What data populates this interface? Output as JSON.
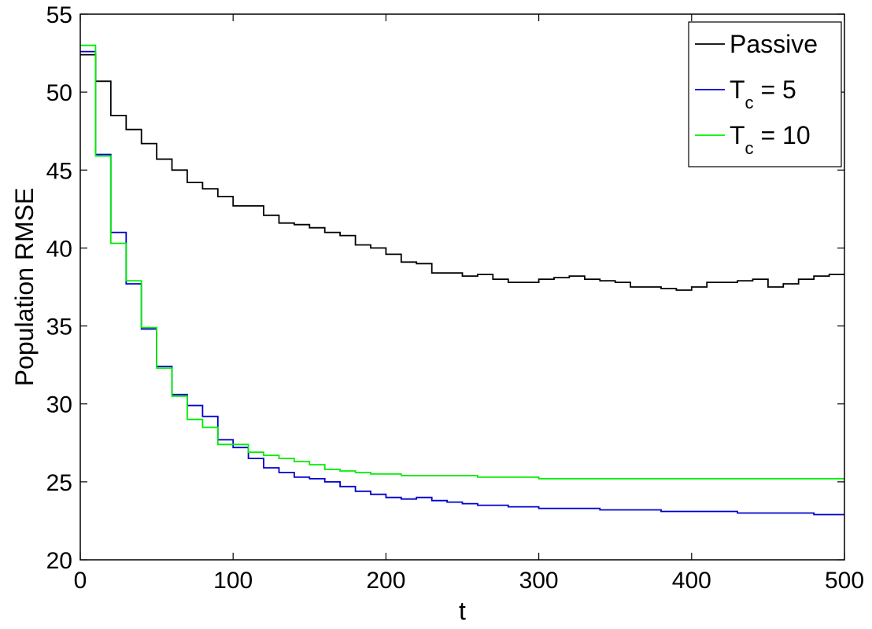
{
  "chart_data": {
    "type": "line",
    "xlabel": "t",
    "ylabel": "Population RMSE",
    "xlim": [
      0,
      500
    ],
    "ylim": [
      20,
      55
    ],
    "xticks": [
      "0",
      "100",
      "200",
      "300",
      "400",
      "500"
    ],
    "yticks": [
      "20",
      "25",
      "30",
      "35",
      "40",
      "45",
      "50",
      "55"
    ],
    "grid": false,
    "legend_position": "top-right",
    "step": "post",
    "series": [
      {
        "name": "Passive",
        "legend": {
          "main": "Passive",
          "sub": "",
          "rest": ""
        },
        "color": "#000000",
        "x": [
          0,
          10,
          20,
          30,
          40,
          50,
          60,
          70,
          80,
          90,
          100,
          110,
          120,
          130,
          140,
          150,
          160,
          170,
          180,
          190,
          200,
          210,
          220,
          230,
          240,
          250,
          260,
          270,
          280,
          290,
          300,
          310,
          320,
          330,
          340,
          350,
          360,
          370,
          380,
          390,
          400,
          410,
          420,
          430,
          440,
          450,
          460,
          470,
          480,
          490,
          500
        ],
        "y": [
          52.4,
          50.7,
          48.5,
          47.6,
          46.7,
          45.7,
          45.0,
          44.2,
          43.8,
          43.3,
          42.7,
          42.7,
          42.1,
          41.6,
          41.5,
          41.3,
          41.0,
          40.8,
          40.2,
          40.0,
          39.6,
          39.1,
          39.0,
          38.4,
          38.4,
          38.2,
          38.3,
          38.0,
          37.8,
          37.8,
          38.0,
          38.1,
          38.2,
          38.0,
          37.9,
          37.8,
          37.5,
          37.5,
          37.4,
          37.3,
          37.5,
          37.8,
          37.8,
          37.9,
          38.0,
          37.5,
          37.7,
          38.0,
          38.2,
          38.3,
          38.3
        ]
      },
      {
        "name": "T_c = 5",
        "legend": {
          "main": "T",
          "sub": "c",
          "rest": " = 5"
        },
        "color": "#0000cc",
        "x": [
          0,
          10,
          20,
          30,
          40,
          50,
          60,
          70,
          80,
          90,
          100,
          110,
          120,
          130,
          140,
          150,
          160,
          170,
          180,
          190,
          200,
          210,
          220,
          230,
          240,
          250,
          260,
          270,
          280,
          290,
          300,
          310,
          320,
          330,
          340,
          350,
          360,
          370,
          380,
          390,
          400,
          410,
          420,
          430,
          440,
          450,
          460,
          470,
          480,
          490,
          500
        ],
        "y": [
          52.6,
          46.0,
          41.0,
          37.7,
          34.8,
          32.4,
          30.6,
          29.9,
          29.2,
          27.7,
          27.2,
          26.5,
          25.9,
          25.6,
          25.3,
          25.2,
          25.0,
          24.7,
          24.4,
          24.2,
          24.0,
          23.9,
          24.0,
          23.8,
          23.7,
          23.6,
          23.5,
          23.5,
          23.4,
          23.4,
          23.3,
          23.3,
          23.3,
          23.3,
          23.2,
          23.2,
          23.2,
          23.2,
          23.1,
          23.1,
          23.1,
          23.1,
          23.1,
          23.0,
          23.0,
          23.0,
          23.0,
          23.0,
          22.9,
          22.9,
          22.9
        ]
      },
      {
        "name": "T_c = 10",
        "legend": {
          "main": "T",
          "sub": "c",
          "rest": " = 10"
        },
        "color": "#00ee00",
        "x": [
          0,
          10,
          20,
          30,
          40,
          50,
          60,
          70,
          80,
          90,
          100,
          110,
          120,
          130,
          140,
          150,
          160,
          170,
          180,
          190,
          200,
          210,
          220,
          230,
          240,
          250,
          260,
          270,
          280,
          290,
          300,
          310,
          320,
          330,
          340,
          350,
          360,
          370,
          380,
          390,
          400,
          410,
          420,
          430,
          440,
          450,
          460,
          470,
          480,
          490,
          500
        ],
        "y": [
          53.0,
          45.9,
          40.3,
          37.9,
          34.9,
          32.3,
          30.5,
          29.0,
          28.5,
          27.4,
          27.4,
          26.9,
          26.7,
          26.5,
          26.3,
          26.1,
          25.8,
          25.7,
          25.6,
          25.5,
          25.5,
          25.4,
          25.4,
          25.4,
          25.4,
          25.4,
          25.3,
          25.3,
          25.3,
          25.3,
          25.2,
          25.2,
          25.2,
          25.2,
          25.2,
          25.2,
          25.2,
          25.2,
          25.2,
          25.2,
          25.2,
          25.2,
          25.2,
          25.2,
          25.2,
          25.2,
          25.2,
          25.2,
          25.2,
          25.2,
          25.2
        ]
      }
    ]
  }
}
